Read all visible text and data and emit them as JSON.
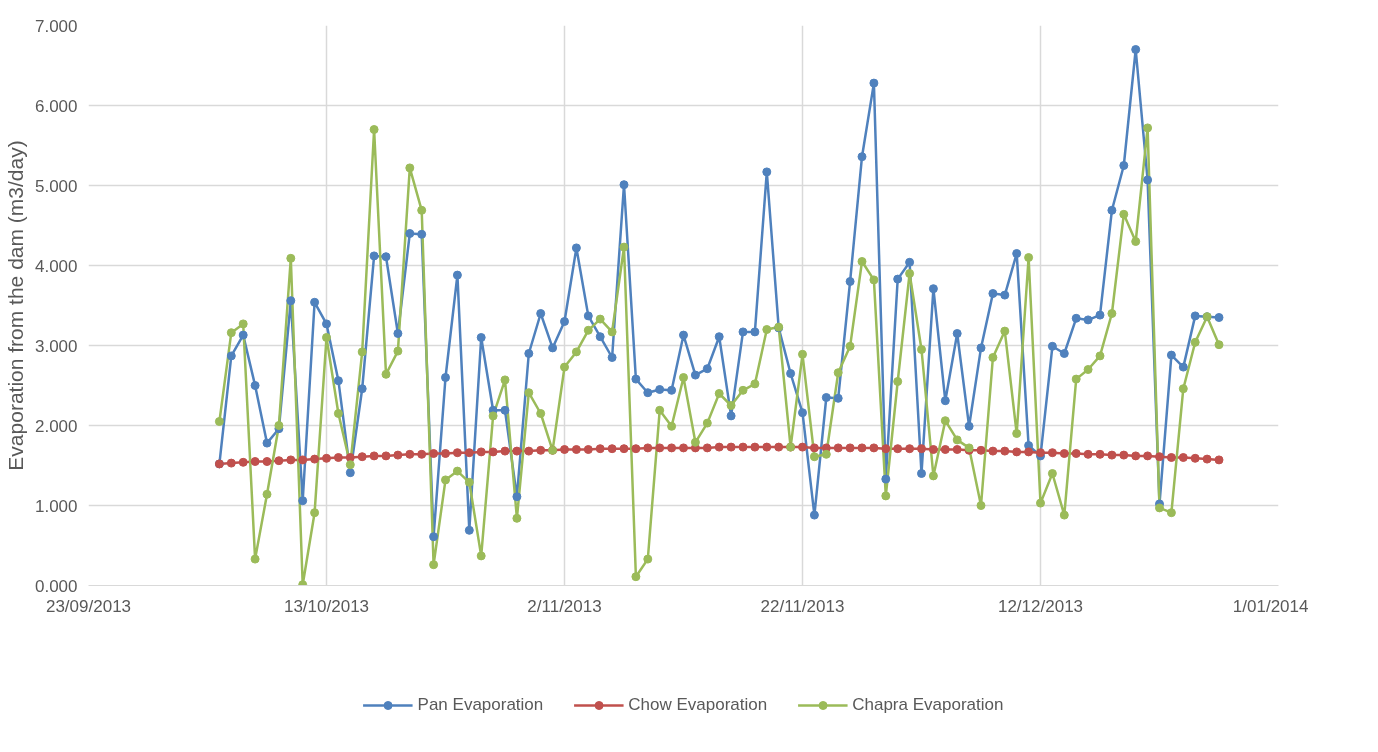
{
  "chart_data": {
    "type": "line",
    "ylabel": "Evaporation from the dam (m3/day)",
    "x": [
      "2013-10-04",
      "2013-10-05",
      "2013-10-06",
      "2013-10-07",
      "2013-10-08",
      "2013-10-09",
      "2013-10-10",
      "2013-10-11",
      "2013-10-12",
      "2013-10-13",
      "2013-10-14",
      "2013-10-15",
      "2013-10-16",
      "2013-10-17",
      "2013-10-18",
      "2013-10-19",
      "2013-10-20",
      "2013-10-21",
      "2013-10-22",
      "2013-10-23",
      "2013-10-24",
      "2013-10-25",
      "2013-10-26",
      "2013-10-27",
      "2013-10-28",
      "2013-10-29",
      "2013-10-30",
      "2013-10-31",
      "2013-11-01",
      "2013-11-02",
      "2013-11-03",
      "2013-11-04",
      "2013-11-05",
      "2013-11-06",
      "2013-11-07",
      "2013-11-08",
      "2013-11-09",
      "2013-11-10",
      "2013-11-11",
      "2013-11-12",
      "2013-11-13",
      "2013-11-14",
      "2013-11-15",
      "2013-11-16",
      "2013-11-17",
      "2013-11-18",
      "2013-11-19",
      "2013-11-20",
      "2013-11-21",
      "2013-11-22",
      "2013-11-23",
      "2013-11-24",
      "2013-11-25",
      "2013-11-26",
      "2013-11-27",
      "2013-11-28",
      "2013-11-29",
      "2013-11-30",
      "2013-12-01",
      "2013-12-02",
      "2013-12-03",
      "2013-12-04",
      "2013-12-05",
      "2013-12-06",
      "2013-12-07",
      "2013-12-08",
      "2013-12-09",
      "2013-12-10",
      "2013-12-11",
      "2013-12-12",
      "2013-12-13",
      "2013-12-14",
      "2013-12-15",
      "2013-12-16",
      "2013-12-17",
      "2013-12-18",
      "2013-12-19",
      "2013-12-20",
      "2013-12-21",
      "2013-12-22",
      "2013-12-23",
      "2013-12-24",
      "2013-12-25",
      "2013-12-26",
      "2013-12-27"
    ],
    "series": [
      {
        "name": "Pan Evaporation",
        "color": "#4f81bd",
        "values": [
          1.52,
          2.87,
          3.13,
          2.5,
          1.78,
          1.96,
          3.56,
          1.06,
          3.54,
          3.27,
          2.56,
          1.41,
          2.46,
          4.12,
          4.11,
          3.15,
          4.4,
          4.39,
          0.61,
          2.6,
          3.88,
          0.69,
          3.1,
          2.19,
          2.19,
          1.11,
          2.9,
          3.4,
          2.97,
          3.3,
          4.22,
          3.37,
          3.11,
          2.85,
          5.01,
          2.58,
          2.41,
          2.45,
          2.44,
          3.13,
          2.63,
          2.71,
          3.11,
          2.12,
          3.17,
          3.17,
          5.17,
          3.22,
          2.65,
          2.16,
          0.88,
          2.35,
          2.34,
          3.8,
          5.36,
          6.28,
          1.33,
          3.83,
          4.04,
          1.4,
          3.71,
          2.31,
          3.15,
          1.99,
          2.97,
          3.65,
          3.63,
          4.15,
          1.75,
          1.62,
          2.99,
          2.9,
          3.34,
          3.32,
          3.38,
          4.69,
          5.25,
          6.7,
          5.07,
          1.02,
          2.88,
          2.73,
          3.37,
          3.36,
          3.35
        ]
      },
      {
        "name": "Chow Evaporation",
        "color": "#c0504d",
        "values": [
          1.52,
          1.53,
          1.54,
          1.55,
          1.55,
          1.56,
          1.57,
          1.57,
          1.58,
          1.59,
          1.6,
          1.6,
          1.61,
          1.62,
          1.62,
          1.63,
          1.64,
          1.64,
          1.65,
          1.65,
          1.66,
          1.66,
          1.67,
          1.67,
          1.68,
          1.68,
          1.68,
          1.69,
          1.69,
          1.7,
          1.7,
          1.7,
          1.71,
          1.71,
          1.71,
          1.71,
          1.72,
          1.72,
          1.72,
          1.72,
          1.72,
          1.72,
          1.73,
          1.73,
          1.73,
          1.73,
          1.73,
          1.73,
          1.73,
          1.73,
          1.72,
          1.72,
          1.72,
          1.72,
          1.72,
          1.72,
          1.71,
          1.71,
          1.71,
          1.71,
          1.7,
          1.7,
          1.7,
          1.69,
          1.69,
          1.68,
          1.68,
          1.67,
          1.67,
          1.66,
          1.66,
          1.65,
          1.65,
          1.64,
          1.64,
          1.63,
          1.63,
          1.62,
          1.62,
          1.61,
          1.6,
          1.6,
          1.59,
          1.58,
          1.57
        ]
      },
      {
        "name": "Chapra Evaporation",
        "color": "#9bbb59",
        "values": [
          2.05,
          3.16,
          3.27,
          0.33,
          1.14,
          2.0,
          4.09,
          0.01,
          0.91,
          3.1,
          2.15,
          1.51,
          2.92,
          5.7,
          2.64,
          2.93,
          5.22,
          4.69,
          0.26,
          1.32,
          1.43,
          1.29,
          0.37,
          2.12,
          2.57,
          0.84,
          2.41,
          2.15,
          1.69,
          2.73,
          2.92,
          3.19,
          3.33,
          3.17,
          4.23,
          0.11,
          0.33,
          2.19,
          1.99,
          2.6,
          1.79,
          2.03,
          2.4,
          2.25,
          2.44,
          2.52,
          3.2,
          3.23,
          1.73,
          2.89,
          1.61,
          1.64,
          2.66,
          2.99,
          4.05,
          3.82,
          1.12,
          2.55,
          3.9,
          2.95,
          1.37,
          2.06,
          1.82,
          1.72,
          1.0,
          2.85,
          3.18,
          1.9,
          4.1,
          1.03,
          1.4,
          0.88,
          2.58,
          2.7,
          2.87,
          3.4,
          4.64,
          4.3,
          5.72,
          0.97,
          0.91,
          2.46,
          3.04,
          3.36,
          3.01
        ]
      }
    ],
    "xlim": [
      "2013-09-23",
      "2014-01-01"
    ],
    "xticks": [
      {
        "value": "2013-09-23",
        "label": "23/09/2013"
      },
      {
        "value": "2013-10-13",
        "label": "13/10/2013"
      },
      {
        "value": "2013-11-02",
        "label": "2/11/2013"
      },
      {
        "value": "2013-11-22",
        "label": "22/11/2013"
      },
      {
        "value": "2013-12-12",
        "label": "12/12/2013"
      },
      {
        "value": "2014-01-01",
        "label": "1/01/2014"
      }
    ],
    "ylim": [
      0,
      7
    ],
    "yticks": [
      {
        "value": 0,
        "label": "0.000"
      },
      {
        "value": 1,
        "label": "1.000"
      },
      {
        "value": 2,
        "label": "2.000"
      },
      {
        "value": 3,
        "label": "3.000"
      },
      {
        "value": 4,
        "label": "4.000"
      },
      {
        "value": 5,
        "label": "5.000"
      },
      {
        "value": 6,
        "label": "6.000"
      },
      {
        "value": 7,
        "label": "7.000"
      }
    ],
    "grid": true,
    "legend": "bottom",
    "marker": "circle",
    "line_style": "solid"
  }
}
